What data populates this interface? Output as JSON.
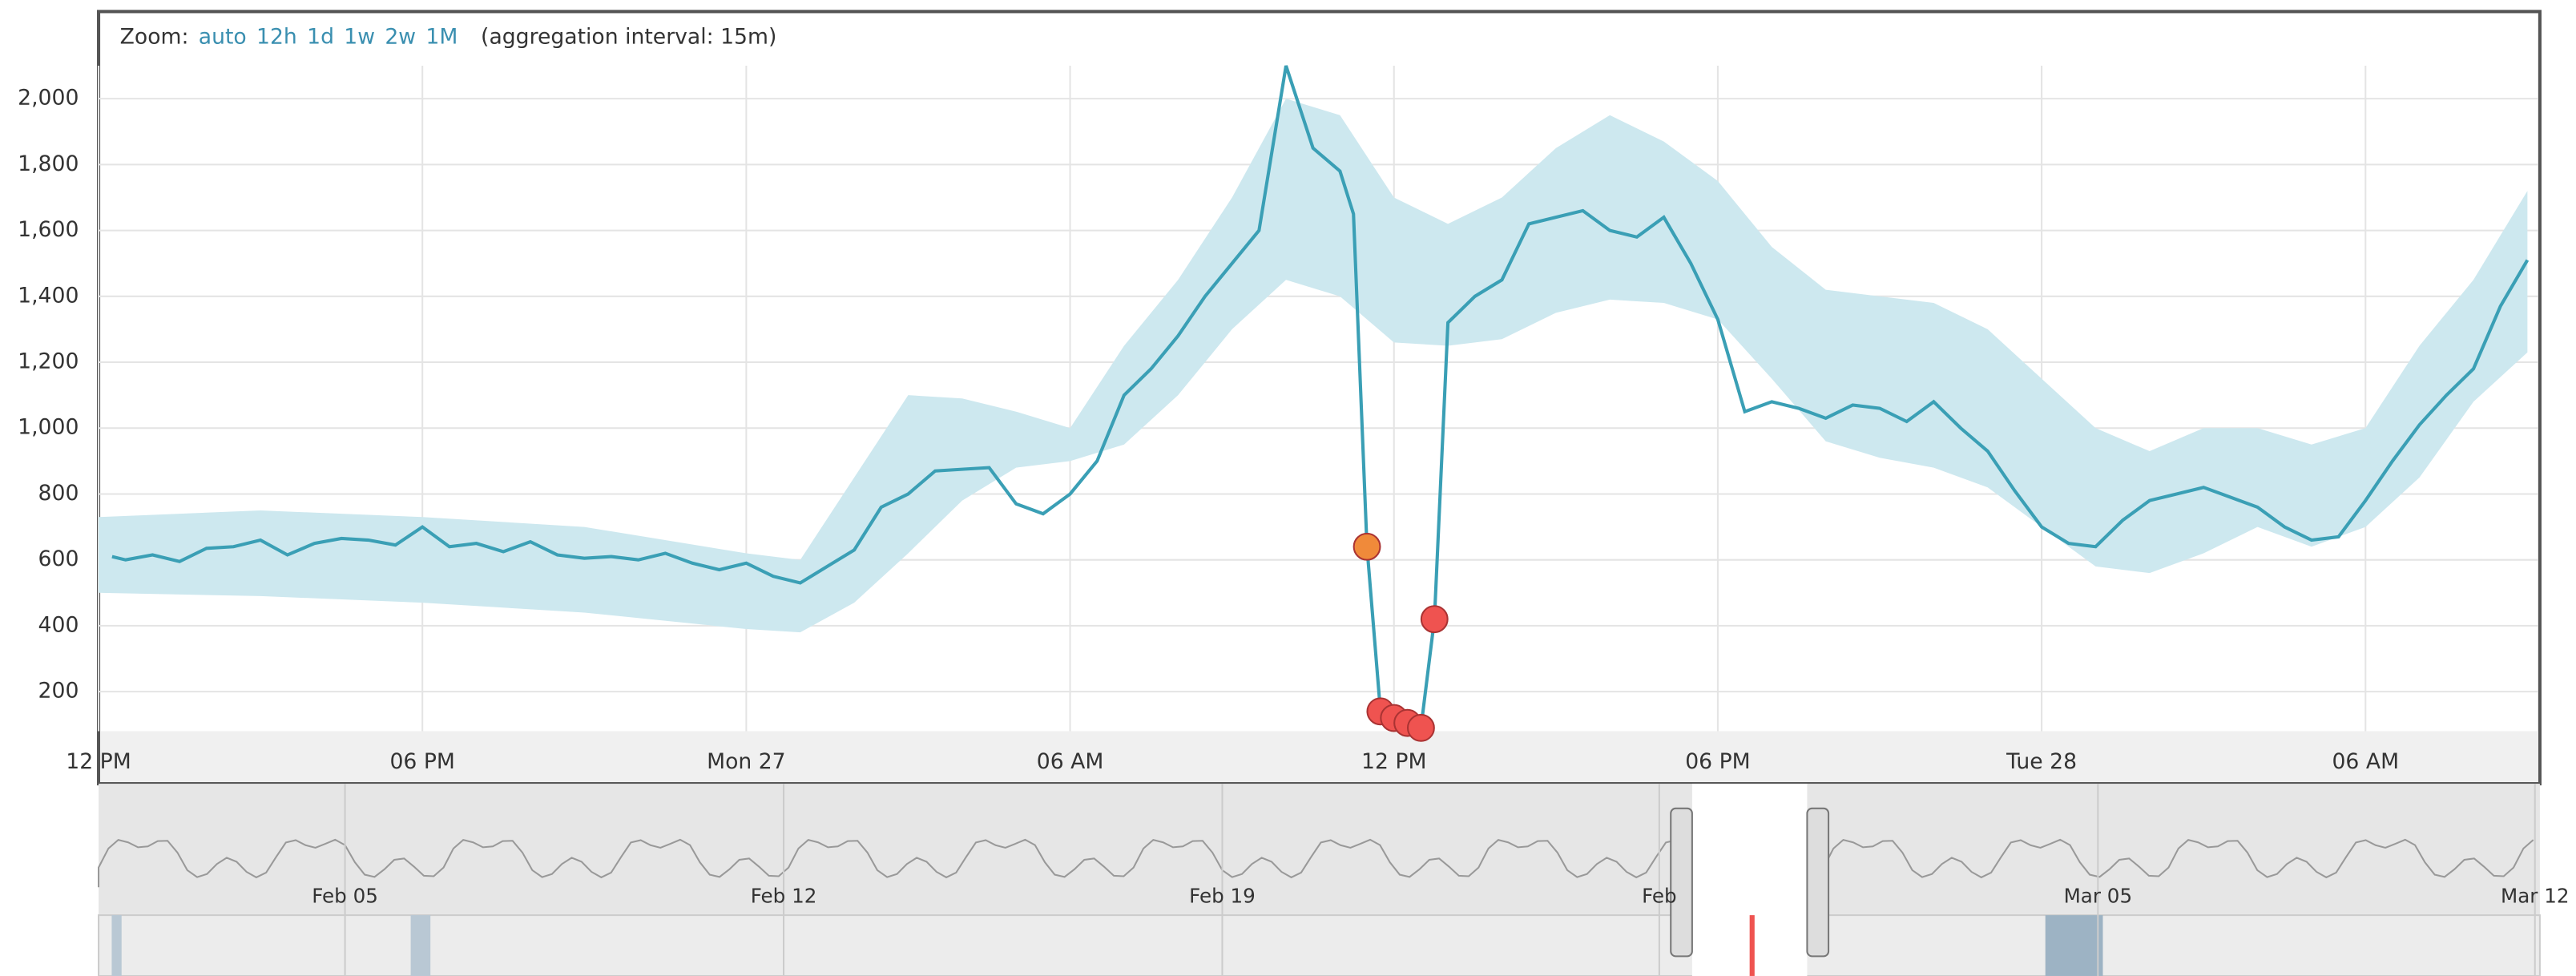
{
  "chart_data": {
    "type": "line",
    "zoom_label": "Zoom:",
    "zoom_options": [
      "auto",
      "12h",
      "1d",
      "1w",
      "2w",
      "1M"
    ],
    "aggregation_note": "(aggregation interval: 15m)",
    "xlim": [
      0,
      45.2
    ],
    "xticks": [
      {
        "value": 0,
        "label": "12 PM"
      },
      {
        "value": 6,
        "label": "06 PM"
      },
      {
        "value": 12,
        "label": "Mon 27"
      },
      {
        "value": 18,
        "label": "06 AM"
      },
      {
        "value": 24,
        "label": "12 PM"
      },
      {
        "value": 30,
        "label": "06 PM"
      },
      {
        "value": 36,
        "label": "Tue 28"
      },
      {
        "value": 42,
        "label": "06 AM"
      }
    ],
    "ylim": [
      80,
      2100
    ],
    "yticks": [
      200,
      400,
      600,
      800,
      {
        "value": 1000,
        "label": "1,000"
      },
      {
        "value": 1200,
        "label": "1,200"
      },
      {
        "value": 1400,
        "label": "1,400"
      },
      {
        "value": 1600,
        "label": "1,600"
      },
      {
        "value": 1800,
        "label": "1,800"
      },
      {
        "value": 2000,
        "label": "2,000"
      }
    ],
    "grid": true,
    "series": [
      {
        "color": "#3a9fb5",
        "x": [
          0.25,
          0.5,
          1,
          1.5,
          2,
          2.5,
          3,
          3.5,
          4,
          4.5,
          5,
          5.5,
          6,
          6.5,
          7,
          7.5,
          8,
          8.5,
          9,
          9.5,
          10,
          10.5,
          11,
          11.5,
          12,
          12.5,
          13,
          13.5,
          14,
          14.5,
          15,
          15.5,
          16,
          16.5,
          17,
          17.5,
          18,
          18.5,
          19,
          19.5,
          20,
          20.5,
          21,
          21.5,
          22,
          22.5,
          23,
          23.25,
          23.5,
          23.75,
          24,
          24.25,
          24.5,
          24.75,
          25,
          25.5,
          26,
          26.5,
          27,
          27.5,
          28,
          28.5,
          29,
          29.5,
          30,
          30.5,
          31,
          31.5,
          32,
          32.5,
          33,
          33.5,
          34,
          34.5,
          35,
          35.5,
          36,
          36.5,
          37,
          37.5,
          38,
          38.5,
          39,
          39.5,
          40,
          40.5,
          41,
          41.5,
          42,
          42.5,
          43,
          43.5,
          44,
          44.5,
          45
        ],
        "values": [
          610,
          600,
          615,
          595,
          635,
          640,
          660,
          615,
          650,
          665,
          660,
          645,
          700,
          640,
          650,
          625,
          655,
          615,
          605,
          610,
          600,
          620,
          590,
          570,
          590,
          550,
          530,
          580,
          630,
          760,
          800,
          870,
          875,
          880,
          770,
          740,
          800,
          900,
          1100,
          1180,
          1280,
          1400,
          1500,
          1600,
          2100,
          1850,
          1780,
          1650,
          640,
          140,
          120,
          105,
          90,
          420,
          1320,
          1400,
          1450,
          1620,
          1640,
          1660,
          1600,
          1580,
          1640,
          1500,
          1330,
          1050,
          1080,
          1060,
          1030,
          1070,
          1060,
          1020,
          1080,
          1000,
          930,
          810,
          700,
          650,
          640,
          720,
          780,
          800,
          820,
          790,
          760,
          700,
          660,
          670,
          780,
          900,
          1010,
          1100,
          1180,
          1370,
          1510
        ]
      }
    ],
    "band": {
      "color": "#cde8ef",
      "x": [
        0,
        3,
        6,
        9,
        12,
        13,
        14,
        15,
        16,
        17,
        18,
        19,
        20,
        21,
        22,
        23,
        24,
        25,
        26,
        27,
        28,
        29,
        30,
        31,
        32,
        33,
        34,
        35,
        36,
        37,
        38,
        39,
        40,
        41,
        42,
        43,
        44,
        45
      ],
      "upper": [
        730,
        750,
        730,
        700,
        620,
        600,
        850,
        1100,
        1090,
        1050,
        1000,
        1250,
        1450,
        1700,
        2000,
        1950,
        1700,
        1620,
        1700,
        1850,
        1950,
        1870,
        1750,
        1550,
        1420,
        1400,
        1380,
        1300,
        1150,
        1000,
        930,
        1000,
        1000,
        950,
        1000,
        1250,
        1450,
        1720
      ],
      "lower": [
        500,
        490,
        470,
        440,
        390,
        380,
        470,
        620,
        780,
        880,
        900,
        950,
        1100,
        1300,
        1450,
        1400,
        1260,
        1250,
        1270,
        1350,
        1390,
        1380,
        1330,
        1150,
        960,
        910,
        880,
        820,
        700,
        580,
        560,
        620,
        700,
        640,
        700,
        850,
        1080,
        1230
      ]
    },
    "anomalies": {
      "x": [
        23.5,
        23.75,
        24,
        24.25,
        24.5,
        24.75
      ],
      "values": [
        640,
        140,
        120,
        105,
        90,
        420
      ],
      "colors": [
        "#f08a3a",
        "#ef5350",
        "#ef5350",
        "#ef5350",
        "#ef5350",
        "#ef5350"
      ]
    },
    "context_labels": [
      "Feb 05",
      "Feb 12",
      "Feb 19",
      "Feb",
      "Mar 05",
      "Mar 12"
    ]
  }
}
